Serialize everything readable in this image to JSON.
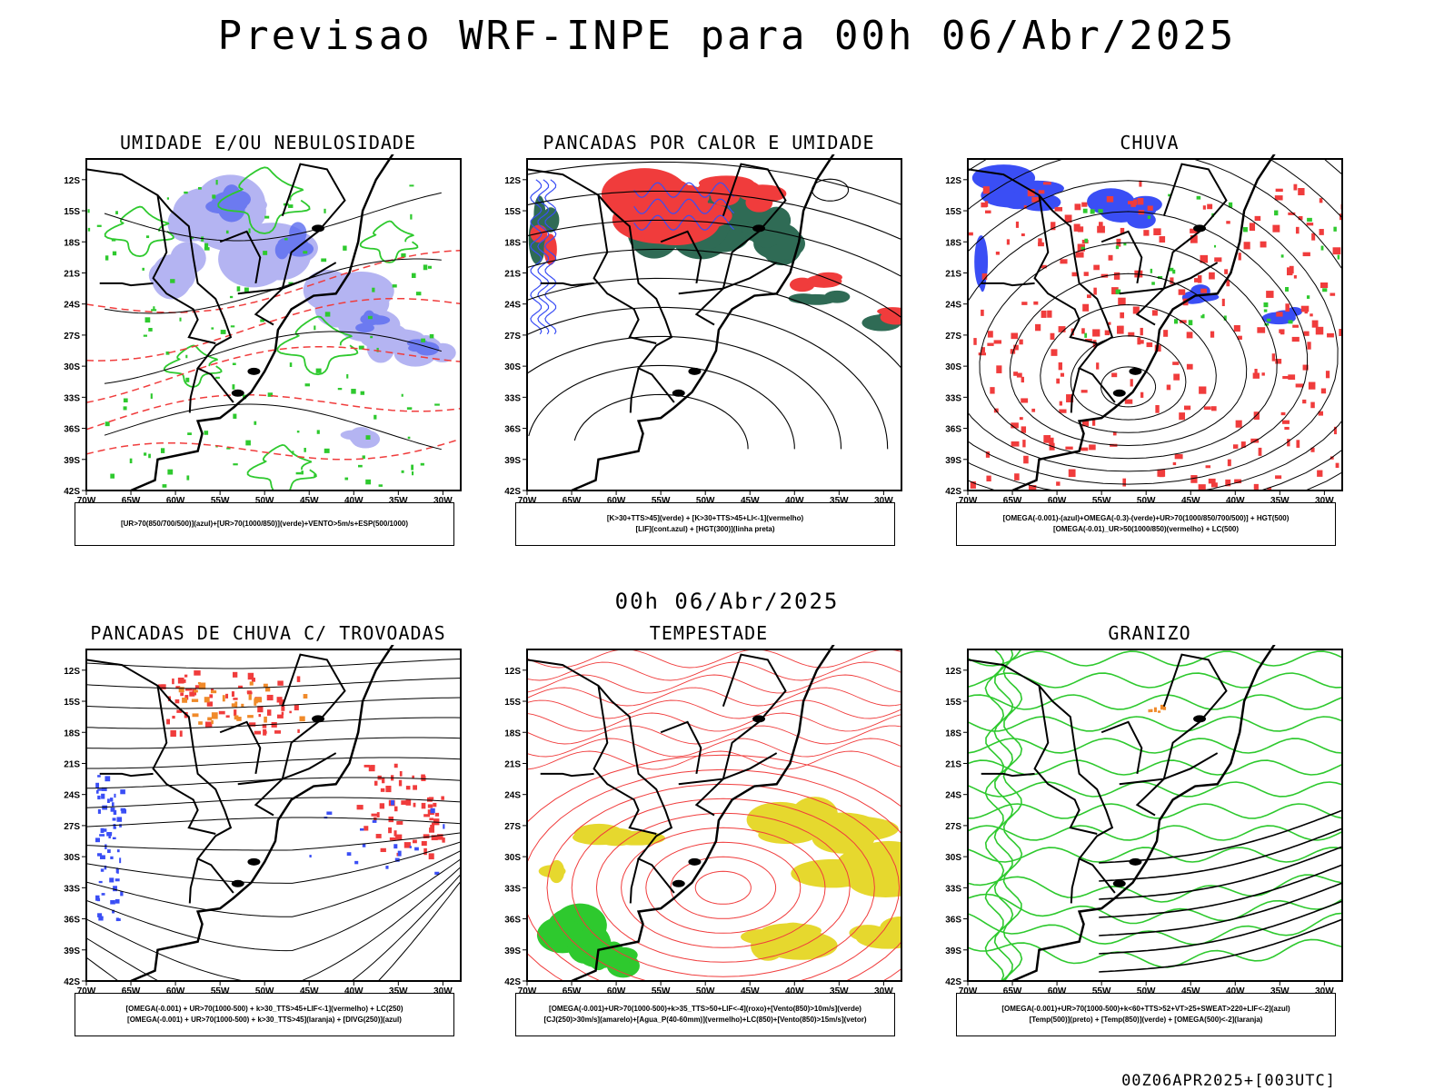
{
  "main_title": "Previsao WRF-INPE  para 00h 06/Abr/2025",
  "middle_title": "00h 06/Abr/2025",
  "footer_stamp": "00Z06APR2025+[003UTC]",
  "lat_labels": [
    "12S",
    "15S",
    "18S",
    "21S",
    "24S",
    "27S",
    "30S",
    "33S",
    "36S",
    "39S",
    "42S"
  ],
  "lon_labels": [
    "70W",
    "65W",
    "60W",
    "55W",
    "50W",
    "45W",
    "40W",
    "35W",
    "30W"
  ],
  "panels": [
    {
      "title": "UMIDADE E/OU NEBULOSIDADE",
      "legend": [
        "[UR>70(850/700/500)](azul)+[UR>70(1000/850)](verde)+VENTO>5m/s+ESP(500/1000)"
      ]
    },
    {
      "title": "PANCADAS POR CALOR E UMIDADE",
      "legend": [
        "[K>30+TTS>45](verde) + [K>30+TTS>45+LI<-1](vermelho)",
        "[LIF](cont.azul) + [HGT(300)](linha preta)"
      ]
    },
    {
      "title": "CHUVA",
      "legend": [
        "[OMEGA(-0.001)-(azul)+OMEGA(-0.3)-(verde)+UR>70(1000/850/700/500)] + HGT(500)",
        "[OMEGA(-0.01)_UR>50(1000/850)(vermelho) + LC(500)"
      ]
    },
    {
      "title": "PANCADAS DE CHUVA C/ TROVOADAS",
      "legend": [
        "[OMEGA(-0.001) + UR>70(1000-500) + k>30_TTS>45+LIF<-1](vermelho) + LC(250)",
        "[OMEGA(-0.001) + UR>70(1000-500) + k>30_TTS>45](laranja) + [DIVG(250)](azul)"
      ]
    },
    {
      "title": "TEMPESTADE",
      "legend": [
        "[OMEGA(-0.001)+UR>70(1000-500)+k>35_TTS>50+LIF<-4](roxo)+[Vento(850)>10m/s](verde)",
        "[CJ(250)>30m/s](amarelo)+[Agua_P(40-60mm)](vermelho)+LC(850)+[Vento(850)>15m/s](vetor)"
      ]
    },
    {
      "title": "GRANIZO",
      "legend": [
        "[OMEGA(-0.001)+UR>70(1000-500)+k<60+TTS>52+VT>25+SWEAT>220+LIF<-2](azul)",
        "[Temp(500)](preto) + [Temp(850)](verde) + [OMEGA(500)<-2](laranja)"
      ]
    }
  ],
  "colors": {
    "blue": "#3a4ef5",
    "lavender": "#a8a8f0",
    "green": "#2ec92e",
    "red": "#f03c3c",
    "darkgreen": "#2f6b55",
    "yellow": "#e6d82e",
    "orange": "#f08a2a",
    "black": "#000000"
  }
}
